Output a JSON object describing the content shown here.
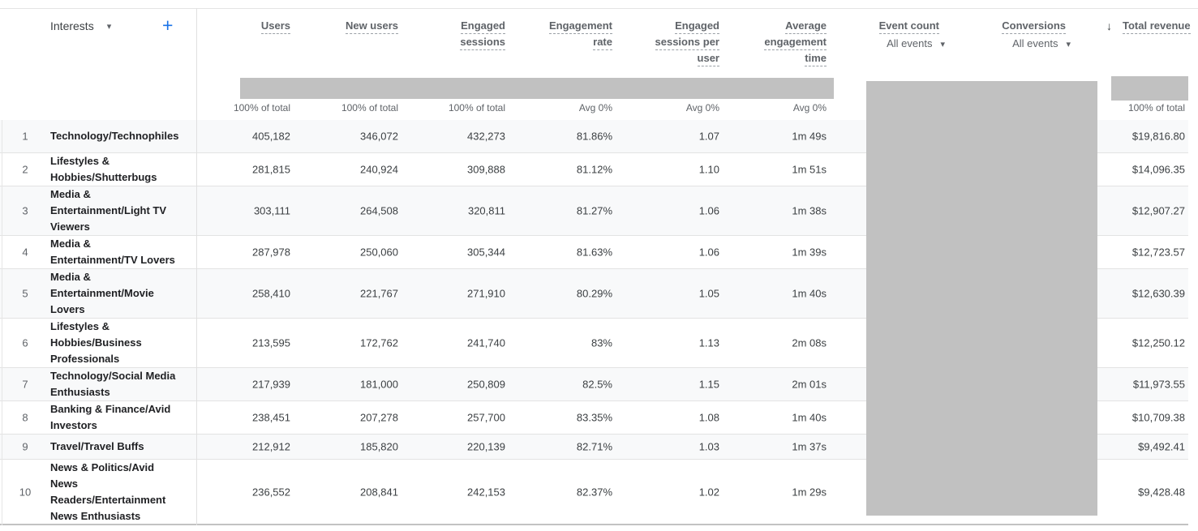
{
  "colors": {
    "accent_blue": "#1a73e8",
    "redaction_gray": "#c1c1c1",
    "row_stripe": "#f8f9fa",
    "header_text": "#5f6368"
  },
  "icons": {
    "chevron_down": "▾",
    "sort_descending": "↓",
    "add": "+"
  },
  "dimension_header": {
    "label": "Interests",
    "add_button": "+"
  },
  "columns": [
    {
      "id": "users",
      "label_lines": [
        "Users"
      ],
      "summary": "100% of total"
    },
    {
      "id": "new_users",
      "label_lines": [
        "New users"
      ],
      "summary": "100% of total"
    },
    {
      "id": "engaged_sessions",
      "label_lines": [
        "Engaged",
        "sessions"
      ],
      "summary": "100% of total"
    },
    {
      "id": "engagement_rate",
      "label_lines": [
        "Engagement",
        "rate"
      ],
      "summary": "Avg 0%"
    },
    {
      "id": "engaged_sessions_per_user",
      "label_lines": [
        "Engaged",
        "sessions per",
        "user"
      ],
      "summary": "Avg 0%"
    },
    {
      "id": "average_engagement_time",
      "label_lines": [
        "Average",
        "engagement",
        "time"
      ],
      "summary": "Avg 0%"
    },
    {
      "id": "event_count",
      "label_lines": [
        "Event count"
      ],
      "filter": "All events",
      "summary": ""
    },
    {
      "id": "conversions",
      "label_lines": [
        "Conversions"
      ],
      "filter": "All events",
      "summary": ""
    },
    {
      "id": "total_revenue",
      "label": "Total revenue",
      "sorted": "descending",
      "summary": "100% of total"
    }
  ],
  "rows": [
    {
      "index": "1",
      "name": "Technology/Technophiles",
      "name_lines": [
        "Technology/Technophiles"
      ],
      "users": "405,182",
      "new_users": "346,072",
      "engaged_sessions": "432,273",
      "engagement_rate": "81.86%",
      "engaged_sessions_per_user": "1.07",
      "average_engagement_time": "1m 49s",
      "total_revenue": "$19,816.80"
    },
    {
      "index": "2",
      "name": "Lifestyles & Hobbies/Shutterbugs",
      "name_lines": [
        "Lifestyles &",
        "Hobbies/Shutterbugs"
      ],
      "users": "281,815",
      "new_users": "240,924",
      "engaged_sessions": "309,888",
      "engagement_rate": "81.12%",
      "engaged_sessions_per_user": "1.10",
      "average_engagement_time": "1m 51s",
      "total_revenue": "$14,096.35"
    },
    {
      "index": "3",
      "name": "Media & Entertainment/Light TV Viewers",
      "name_lines": [
        "Media &",
        "Entertainment/Light TV",
        "Viewers"
      ],
      "users": "303,111",
      "new_users": "264,508",
      "engaged_sessions": "320,811",
      "engagement_rate": "81.27%",
      "engaged_sessions_per_user": "1.06",
      "average_engagement_time": "1m 38s",
      "total_revenue": "$12,907.27"
    },
    {
      "index": "4",
      "name": "Media & Entertainment/TV Lovers",
      "name_lines": [
        "Media &",
        "Entertainment/TV Lovers"
      ],
      "users": "287,978",
      "new_users": "250,060",
      "engaged_sessions": "305,344",
      "engagement_rate": "81.63%",
      "engaged_sessions_per_user": "1.06",
      "average_engagement_time": "1m 39s",
      "total_revenue": "$12,723.57"
    },
    {
      "index": "5",
      "name": "Media & Entertainment/Movie Lovers",
      "name_lines": [
        "Media &",
        "Entertainment/Movie",
        "Lovers"
      ],
      "users": "258,410",
      "new_users": "221,767",
      "engaged_sessions": "271,910",
      "engagement_rate": "80.29%",
      "engaged_sessions_per_user": "1.05",
      "average_engagement_time": "1m 40s",
      "total_revenue": "$12,630.39"
    },
    {
      "index": "6",
      "name": "Lifestyles & Hobbies/Business Professionals",
      "name_lines": [
        "Lifestyles &",
        "Hobbies/Business",
        "Professionals"
      ],
      "users": "213,595",
      "new_users": "172,762",
      "engaged_sessions": "241,740",
      "engagement_rate": "83%",
      "engaged_sessions_per_user": "1.13",
      "average_engagement_time": "2m 08s",
      "total_revenue": "$12,250.12"
    },
    {
      "index": "7",
      "name": "Technology/Social Media Enthusiasts",
      "name_lines": [
        "Technology/Social Media",
        "Enthusiasts"
      ],
      "users": "217,939",
      "new_users": "181,000",
      "engaged_sessions": "250,809",
      "engagement_rate": "82.5%",
      "engaged_sessions_per_user": "1.15",
      "average_engagement_time": "2m 01s",
      "total_revenue": "$11,973.55"
    },
    {
      "index": "8",
      "name": "Banking & Finance/Avid Investors",
      "name_lines": [
        "Banking & Finance/Avid",
        "Investors"
      ],
      "users": "238,451",
      "new_users": "207,278",
      "engaged_sessions": "257,700",
      "engagement_rate": "83.35%",
      "engaged_sessions_per_user": "1.08",
      "average_engagement_time": "1m 40s",
      "total_revenue": "$10,709.38"
    },
    {
      "index": "9",
      "name": "Travel/Travel Buffs",
      "name_lines": [
        "Travel/Travel Buffs"
      ],
      "users": "212,912",
      "new_users": "185,820",
      "engaged_sessions": "220,139",
      "engagement_rate": "82.71%",
      "engaged_sessions_per_user": "1.03",
      "average_engagement_time": "1m 37s",
      "total_revenue": "$9,492.41"
    },
    {
      "index": "10",
      "name": "News & Politics/Avid News Readers/Entertainment News Enthusiasts",
      "name_lines": [
        "News & Politics/Avid",
        "News",
        "Readers/Entertainment",
        "News Enthusiasts"
      ],
      "users": "236,552",
      "new_users": "208,841",
      "engaged_sessions": "242,153",
      "engagement_rate": "82.37%",
      "engaged_sessions_per_user": "1.02",
      "average_engagement_time": "1m 29s",
      "total_revenue": "$9,428.48"
    }
  ]
}
